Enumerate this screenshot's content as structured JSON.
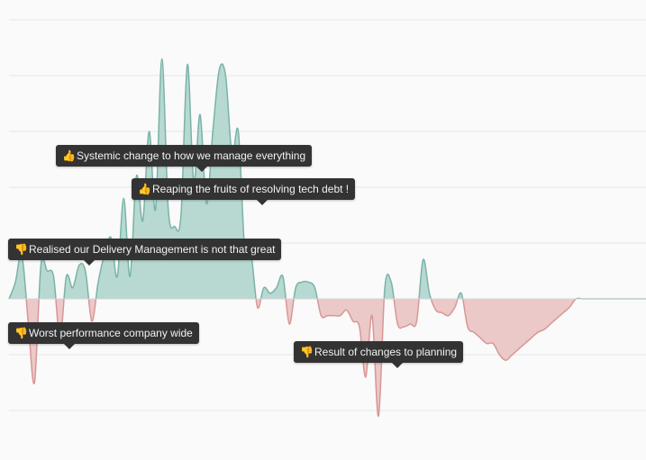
{
  "chart_data": {
    "type": "area",
    "title": "",
    "xlabel": "",
    "ylabel": "",
    "grid": true,
    "ylim": [
      -4,
      5
    ],
    "x": [
      0,
      1,
      2,
      3,
      4,
      5,
      6,
      7,
      8,
      9,
      10,
      11,
      12,
      13,
      14,
      15,
      16,
      17,
      18,
      19,
      20,
      21,
      22,
      23,
      24,
      25,
      26,
      27,
      28,
      29,
      30,
      31,
      32,
      33,
      34,
      35,
      36,
      37,
      38,
      39,
      40,
      41,
      42,
      43,
      44,
      45,
      46,
      47,
      48,
      49,
      50,
      51,
      52,
      53,
      54,
      55,
      56,
      57,
      58,
      59,
      60,
      61,
      62,
      63,
      64,
      65,
      66,
      67,
      68,
      69,
      70,
      71,
      72,
      73,
      74,
      75,
      76,
      77,
      78,
      79,
      80,
      81,
      82,
      83,
      84,
      85,
      86,
      87,
      88,
      89,
      90,
      91,
      92,
      93,
      94,
      95,
      96,
      97,
      98,
      99,
      100
    ],
    "values": [
      0,
      0.3,
      0.8,
      -0.4,
      -1.5,
      0.6,
      0.5,
      0.4,
      -0.7,
      0.4,
      0.2,
      0.6,
      0.5,
      -0.4,
      0.3,
      0.8,
      1.1,
      0.4,
      1.8,
      0.4,
      2.2,
      1.4,
      3.0,
      1.6,
      4.3,
      1.6,
      1.3,
      1.5,
      4.2,
      2.1,
      3.3,
      1.7,
      3.0,
      4.1,
      4.0,
      2.6,
      3.0,
      0.9,
      0.8,
      -0.15,
      0.2,
      0.1,
      0.2,
      0.4,
      -0.45,
      0.2,
      0.3,
      0.3,
      0.2,
      -0.3,
      -0.3,
      -0.3,
      -0.3,
      -0.2,
      -0.4,
      -0.5,
      -1.4,
      -0.3,
      -2.1,
      0.2,
      0.3,
      -0.45,
      -0.5,
      -0.45,
      -0.4,
      0.7,
      0.1,
      -0.2,
      -0.25,
      -0.3,
      -0.15,
      0.1,
      -0.5,
      -0.6,
      -0.7,
      -0.8,
      -0.8,
      -1.0,
      -1.1,
      -1.0,
      -0.9,
      -0.8,
      -0.7,
      -0.6,
      -0.55,
      -0.45,
      -0.35,
      -0.25,
      -0.15,
      0,
      0,
      0,
      0,
      0,
      0,
      0,
      0,
      0,
      0,
      0,
      0
    ],
    "annotations": [
      {
        "text": "Systemic change to how we manage everything",
        "sentiment": "positive",
        "icon": "thumbs-up-icon"
      },
      {
        "text": "Reaping the fruits of resolving tech debt !",
        "sentiment": "positive",
        "icon": "thumbs-up-icon"
      },
      {
        "text": "Realised our Delivery Management is not that great",
        "sentiment": "negative",
        "icon": "thumbs-down-icon"
      },
      {
        "text": "Worst performance company wide",
        "sentiment": "negative",
        "icon": "thumbs-down-icon"
      },
      {
        "text": "Result of changes to planning",
        "sentiment": "negative",
        "icon": "thumbs-down-icon"
      }
    ]
  },
  "colors": {
    "positive_fill": "#b7d9d2",
    "positive_line": "#79b3a7",
    "negative_fill": "#ebc9c8",
    "negative_line": "#d99694",
    "grid": "#e5e5e5",
    "background": "#fafafa",
    "annotation_bg": "#333333",
    "thumb": "#d9a15a"
  }
}
